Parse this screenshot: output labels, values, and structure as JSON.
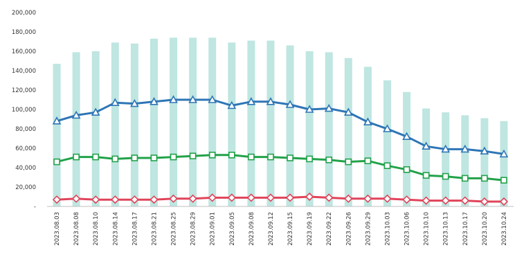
{
  "chart_data": {
    "type": "bar+line",
    "title": "",
    "xlabel": "",
    "ylabel": "",
    "ylim": [
      0,
      200000
    ],
    "y_ticks": [
      "-",
      "20,000",
      "40,000",
      "60,000",
      "80,000",
      "100,000",
      "120,000",
      "140,000",
      "160,000",
      "180,000",
      "200,000"
    ],
    "grid": false,
    "legend": "none",
    "categories": [
      "2023.08.03",
      "2023.08.08",
      "2023.08.10",
      "2023.08.14",
      "2023.08.17",
      "2023.08.21",
      "2023.08.25",
      "2023.08.29",
      "2023.09.01",
      "2023.09.05",
      "2023.09.08",
      "2023.09.12",
      "2023.09.15",
      "2023.09.19",
      "2023.09.22",
      "2023.09.26",
      "2023.09.29",
      "2023.10.03",
      "2023.10.06",
      "2023.10.10",
      "2023.10.13",
      "2023.10.17",
      "2023.10.20",
      "2023.10.24"
    ],
    "bars": {
      "color": "#bfe6e1",
      "values": [
        147000,
        159000,
        160000,
        169000,
        168000,
        173000,
        174000,
        174000,
        174000,
        169000,
        171000,
        171000,
        166000,
        160000,
        159000,
        153000,
        144000,
        130000,
        118000,
        101000,
        97000,
        94000,
        91000,
        88000
      ]
    },
    "series": [
      {
        "color": "#2e75b6",
        "marker": "triangle",
        "values": [
          88000,
          94000,
          97000,
          107000,
          106000,
          108000,
          110000,
          110000,
          110000,
          104000,
          108000,
          108000,
          105000,
          100000,
          101000,
          97000,
          87000,
          80000,
          72000,
          62000,
          59000,
          59000,
          57000,
          54000
        ]
      },
      {
        "color": "#22a24a",
        "marker": "square",
        "values": [
          46000,
          51000,
          51000,
          49000,
          50000,
          50000,
          51000,
          52000,
          53000,
          53000,
          51000,
          51000,
          50000,
          49000,
          48000,
          46000,
          47000,
          42000,
          38000,
          32000,
          31000,
          29000,
          29000,
          27000
        ]
      },
      {
        "color": "#e0445a",
        "marker": "diamond",
        "values": [
          7000,
          8000,
          7000,
          7000,
          7000,
          7000,
          8000,
          8000,
          9000,
          9000,
          9000,
          9000,
          9000,
          10000,
          9000,
          8000,
          8000,
          8000,
          7000,
          6000,
          6000,
          6000,
          5000,
          5000
        ]
      }
    ]
  }
}
